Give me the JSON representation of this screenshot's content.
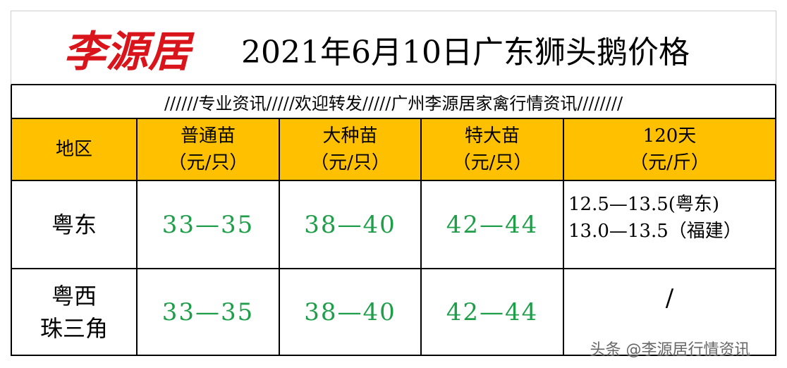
{
  "header": {
    "brand": "李源居",
    "title": "2021年6月10日广东狮头鹅价格"
  },
  "banner": "//////专业资讯/////欢迎转发/////广州李源居家禽行情资讯////////",
  "table": {
    "columns": [
      [
        "地区"
      ],
      [
        "普通苗",
        "（元/只）"
      ],
      [
        "大种苗",
        "（元/只）"
      ],
      [
        "特大苗",
        "（元/只）"
      ],
      [
        "120天",
        "（元/斤）"
      ]
    ],
    "rows": [
      [
        [
          "粤东"
        ],
        "33—35",
        "38—40",
        "42—44",
        [
          "12.5—13.5(粤东)",
          "13.0—13.5（福建）"
        ]
      ],
      [
        [
          "粤西",
          "珠三角"
        ],
        "33—35",
        "38—40",
        "42—44",
        "/"
      ]
    ]
  },
  "watermark": "头条 @李源居行情资讯"
}
